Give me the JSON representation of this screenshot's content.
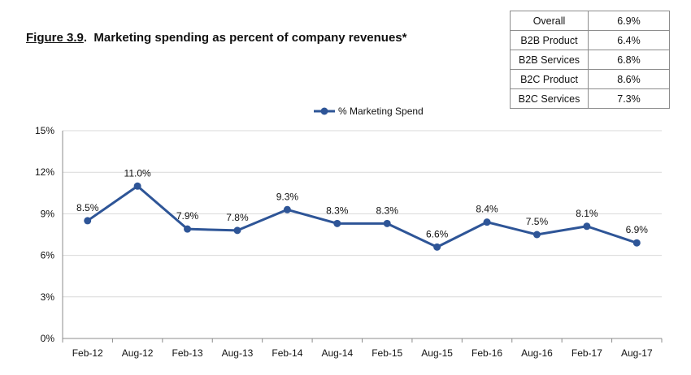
{
  "title": {
    "figure_label": "Figure 3.9",
    "text": "Marketing spending as percent of company revenues*"
  },
  "summary_table": [
    {
      "label": "Overall",
      "value": "6.9%"
    },
    {
      "label": "B2B Product",
      "value": "6.4%"
    },
    {
      "label": "B2B Services",
      "value": "6.8%"
    },
    {
      "label": "B2C Product",
      "value": "8.6%"
    },
    {
      "label": "B2C Services",
      "value": "7.3%"
    }
  ],
  "colors": {
    "series": "#2E5597",
    "grid": "#d9d9d9",
    "axis": "#8c8c8c"
  },
  "chart_data": {
    "type": "line",
    "title": "Marketing spending as percent of company revenues*",
    "xlabel": "",
    "ylabel": "",
    "ylim": [
      0,
      15
    ],
    "yticks": [
      0,
      3,
      6,
      9,
      12,
      15
    ],
    "ytick_labels": [
      "0%",
      "3%",
      "6%",
      "9%",
      "12%",
      "15%"
    ],
    "grid": true,
    "legend_position": "top-center",
    "categories": [
      "Feb-12",
      "Aug-12",
      "Feb-13",
      "Aug-13",
      "Feb-14",
      "Aug-14",
      "Feb-15",
      "Aug-15",
      "Feb-16",
      "Aug-16",
      "Feb-17",
      "Aug-17"
    ],
    "series": [
      {
        "name": "% Marketing Spend",
        "values": [
          8.5,
          11.0,
          7.9,
          7.8,
          9.3,
          8.3,
          8.3,
          6.6,
          8.4,
          7.5,
          8.1,
          6.9
        ],
        "labels": [
          "8.5%",
          "11.0%",
          "7.9%",
          "7.8%",
          "9.3%",
          "8.3%",
          "8.3%",
          "6.6%",
          "8.4%",
          "7.5%",
          "8.1%",
          "6.9%"
        ]
      }
    ]
  }
}
